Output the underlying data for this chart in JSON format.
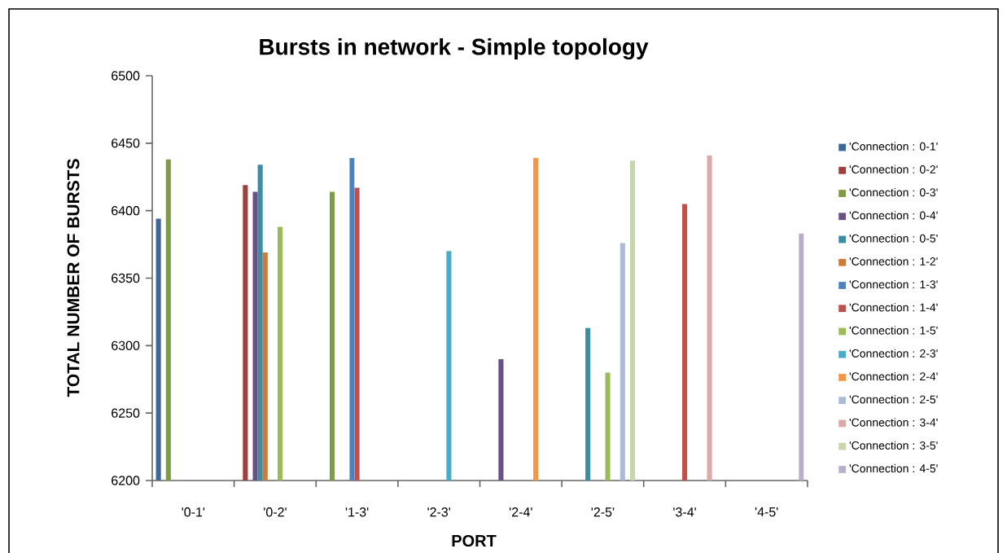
{
  "chart_data": {
    "type": "bar",
    "title": "Bursts in network - Simple topology",
    "xlabel": "PORT",
    "ylabel": "TOTAL NUMBER OF BURSTS",
    "categories": [
      "'0-1'",
      "'0-2'",
      "'1-3'",
      "'2-3'",
      "'2-4'",
      "'2-5'",
      "'3-4'",
      "'4-5'"
    ],
    "ylim": [
      6200,
      6500
    ],
    "yticks": [
      6200,
      6250,
      6300,
      6350,
      6400,
      6450,
      6500
    ],
    "legend": "right",
    "series": [
      {
        "name": "'Connection : 0-1'",
        "color": "#3f6797",
        "values": [
          6394,
          null,
          null,
          null,
          null,
          null,
          null,
          null
        ]
      },
      {
        "name": "'Connection : 0-2'",
        "color": "#9e413e",
        "values": [
          null,
          6419,
          null,
          null,
          null,
          null,
          null,
          null
        ]
      },
      {
        "name": "'Connection : 0-3'",
        "color": "#7f9a48",
        "values": [
          6438,
          null,
          6414,
          null,
          null,
          null,
          null,
          null
        ]
      },
      {
        "name": "'Connection : 0-4'",
        "color": "#695185",
        "values": [
          null,
          6414,
          null,
          null,
          6290,
          null,
          null,
          null
        ]
      },
      {
        "name": "'Connection : 0-5'",
        "color": "#3c8da3",
        "values": [
          null,
          6434,
          null,
          null,
          null,
          6313,
          null,
          null
        ]
      },
      {
        "name": "'Connection : 1-2'",
        "color": "#cc7b38",
        "values": [
          null,
          6369,
          null,
          null,
          null,
          null,
          null,
          null
        ]
      },
      {
        "name": "'Connection : 1-3'",
        "color": "#4f81bd",
        "values": [
          null,
          null,
          6439,
          null,
          null,
          null,
          null,
          null
        ]
      },
      {
        "name": "'Connection : 1-4'",
        "color": "#c0504d",
        "values": [
          null,
          null,
          6417,
          null,
          null,
          null,
          6405,
          null
        ]
      },
      {
        "name": "'Connection : 1-5'",
        "color": "#9bbb59",
        "values": [
          null,
          6388,
          null,
          null,
          null,
          6280,
          null,
          null
        ]
      },
      {
        "name": "'Connection : 2-3'",
        "color": "#4bacc6",
        "values": [
          null,
          null,
          null,
          6370,
          null,
          null,
          null,
          null
        ]
      },
      {
        "name": "'Connection : 2-4'",
        "color": "#f79646",
        "values": [
          null,
          null,
          null,
          null,
          6439,
          null,
          null,
          null
        ]
      },
      {
        "name": "'Connection : 2-5'",
        "color": "#aabad7",
        "values": [
          null,
          null,
          null,
          null,
          null,
          6376,
          null,
          null
        ]
      },
      {
        "name": "'Connection : 3-4'",
        "color": "#dba9a8",
        "values": [
          null,
          null,
          null,
          null,
          null,
          null,
          6441,
          null
        ]
      },
      {
        "name": "'Connection : 3-5'",
        "color": "#c7d6ad",
        "values": [
          null,
          null,
          null,
          null,
          null,
          6437,
          null,
          null
        ]
      },
      {
        "name": "'Connection : 4-5'",
        "color": "#b8afc9",
        "values": [
          null,
          null,
          null,
          null,
          null,
          null,
          null,
          6383
        ]
      }
    ]
  }
}
